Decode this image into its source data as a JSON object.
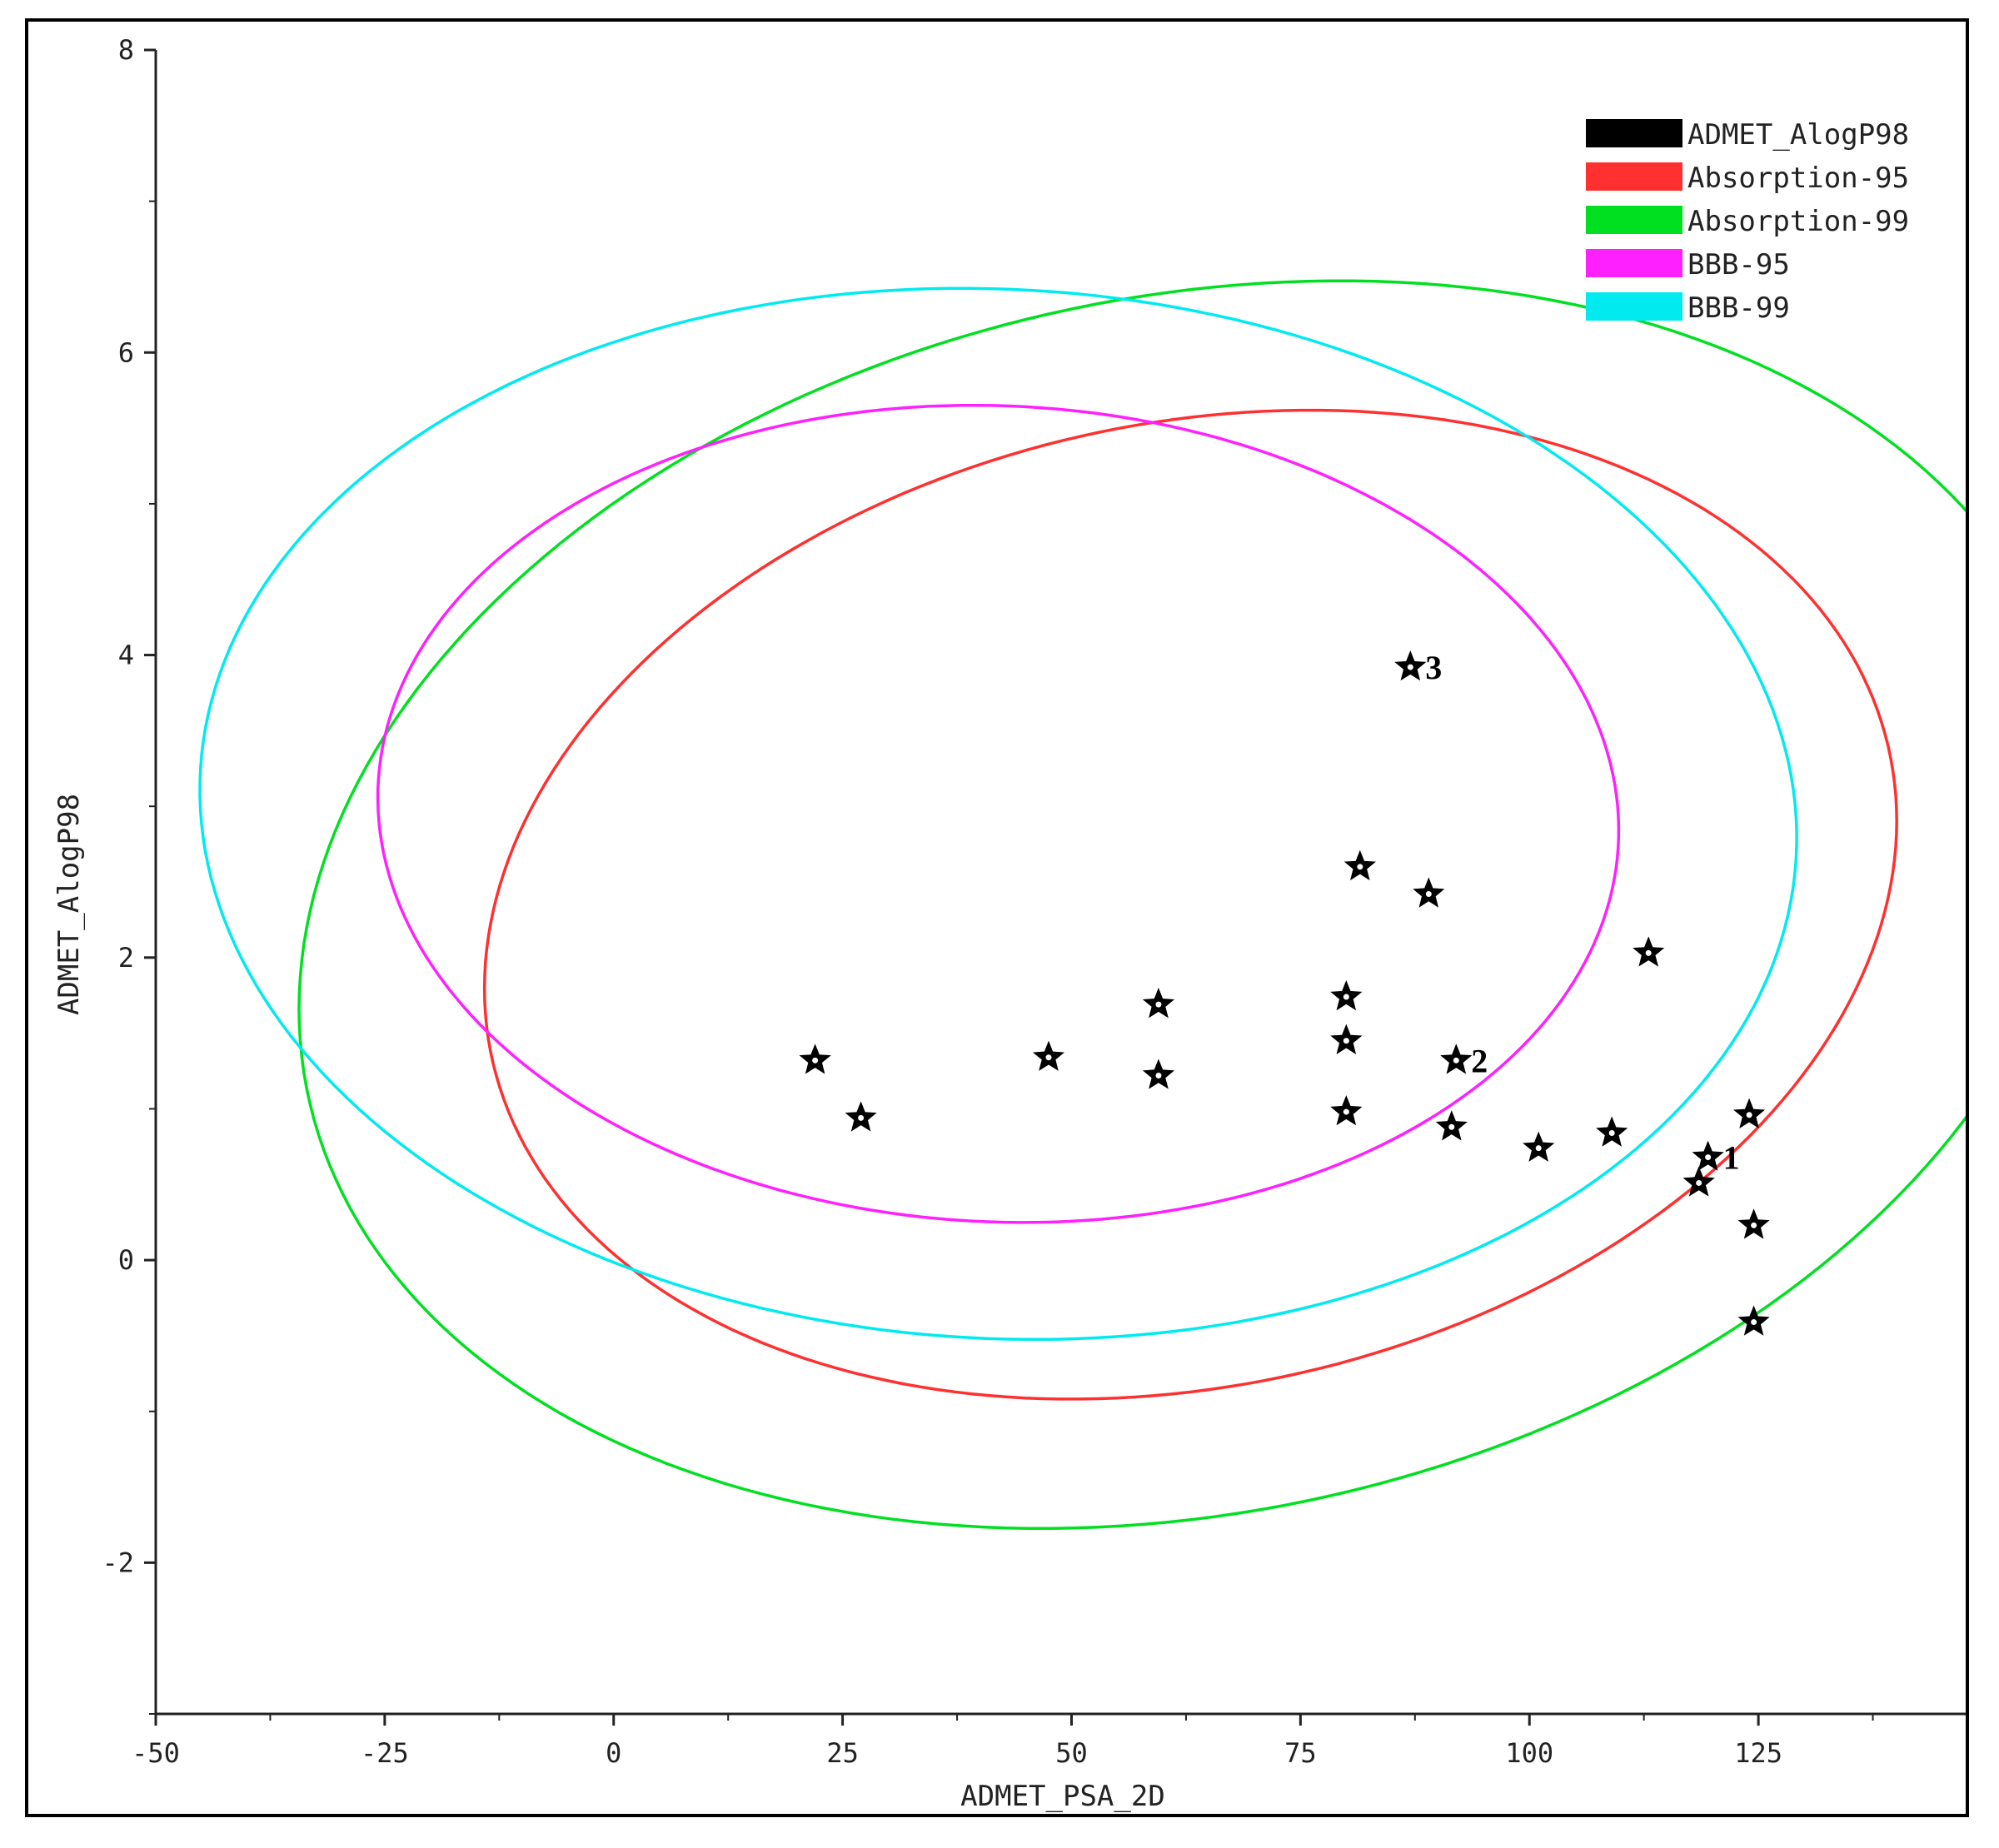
{
  "chart_data": {
    "type": "scatter",
    "title": "",
    "xlabel": "ADMET_PSA_2D",
    "ylabel": "ADMET_AlogP98",
    "xlim": [
      -50,
      148
    ],
    "ylim": [
      -3,
      8
    ],
    "xticks": [
      -50,
      -25,
      0,
      25,
      50,
      75,
      100,
      125
    ],
    "yticks": [
      -2,
      0,
      2,
      4,
      6,
      8
    ],
    "legend_position": "top-right",
    "legend": [
      {
        "name": "ADMET_AlogP98",
        "color": "#000000"
      },
      {
        "name": "Absorption-95",
        "color": "#ff3030"
      },
      {
        "name": "Absorption-99",
        "color": "#00e020"
      },
      {
        "name": "BBB-95",
        "color": "#ff20ff"
      },
      {
        "name": "BBB-99",
        "color": "#00eaf0"
      }
    ],
    "ellipses": [
      {
        "name": "Absorption-95",
        "color": "#ff3030",
        "cx": 63,
        "cy": 2.35,
        "rx": 72,
        "ry": 3.45,
        "tilt": -0.62
      },
      {
        "name": "Absorption-99",
        "color": "#00e020",
        "cx": 63,
        "cy": 2.35,
        "rx": 91,
        "ry": 4.35,
        "tilt": -0.62
      },
      {
        "name": "BBB-95",
        "color": "#ff20ff",
        "cx": 42,
        "cy": 2.95,
        "rx": 69,
        "ry": 2.65,
        "tilt": -0.745
      },
      {
        "name": "BBB-99",
        "color": "#00eaf0",
        "cx": 42,
        "cy": 2.95,
        "rx": 89,
        "ry": 3.4,
        "tilt": -0.745
      }
    ],
    "series": [
      {
        "name": "ADMET_AlogP98",
        "color": "#000000",
        "points": [
          {
            "x": 22,
            "y": 1.32,
            "label": ""
          },
          {
            "x": 27,
            "y": 0.94,
            "label": ""
          },
          {
            "x": 47.5,
            "y": 1.34,
            "label": ""
          },
          {
            "x": 59.5,
            "y": 1.69,
            "label": ""
          },
          {
            "x": 59.5,
            "y": 1.22,
            "label": ""
          },
          {
            "x": 80,
            "y": 1.74,
            "label": ""
          },
          {
            "x": 80,
            "y": 1.45,
            "label": ""
          },
          {
            "x": 80,
            "y": 0.98,
            "label": ""
          },
          {
            "x": 81.5,
            "y": 2.6,
            "label": ""
          },
          {
            "x": 87,
            "y": 3.92,
            "label": "3"
          },
          {
            "x": 89,
            "y": 2.42,
            "label": ""
          },
          {
            "x": 91.5,
            "y": 0.88,
            "label": ""
          },
          {
            "x": 92,
            "y": 1.32,
            "label": "2"
          },
          {
            "x": 101,
            "y": 0.74,
            "label": ""
          },
          {
            "x": 109,
            "y": 0.84,
            "label": ""
          },
          {
            "x": 113,
            "y": 2.03,
            "label": ""
          },
          {
            "x": 118.5,
            "y": 0.51,
            "label": ""
          },
          {
            "x": 119.5,
            "y": 0.68,
            "label": "1"
          },
          {
            "x": 124,
            "y": 0.96,
            "label": ""
          },
          {
            "x": 124.5,
            "y": 0.23,
            "label": ""
          },
          {
            "x": 124.5,
            "y": -0.41,
            "label": ""
          }
        ]
      }
    ]
  }
}
